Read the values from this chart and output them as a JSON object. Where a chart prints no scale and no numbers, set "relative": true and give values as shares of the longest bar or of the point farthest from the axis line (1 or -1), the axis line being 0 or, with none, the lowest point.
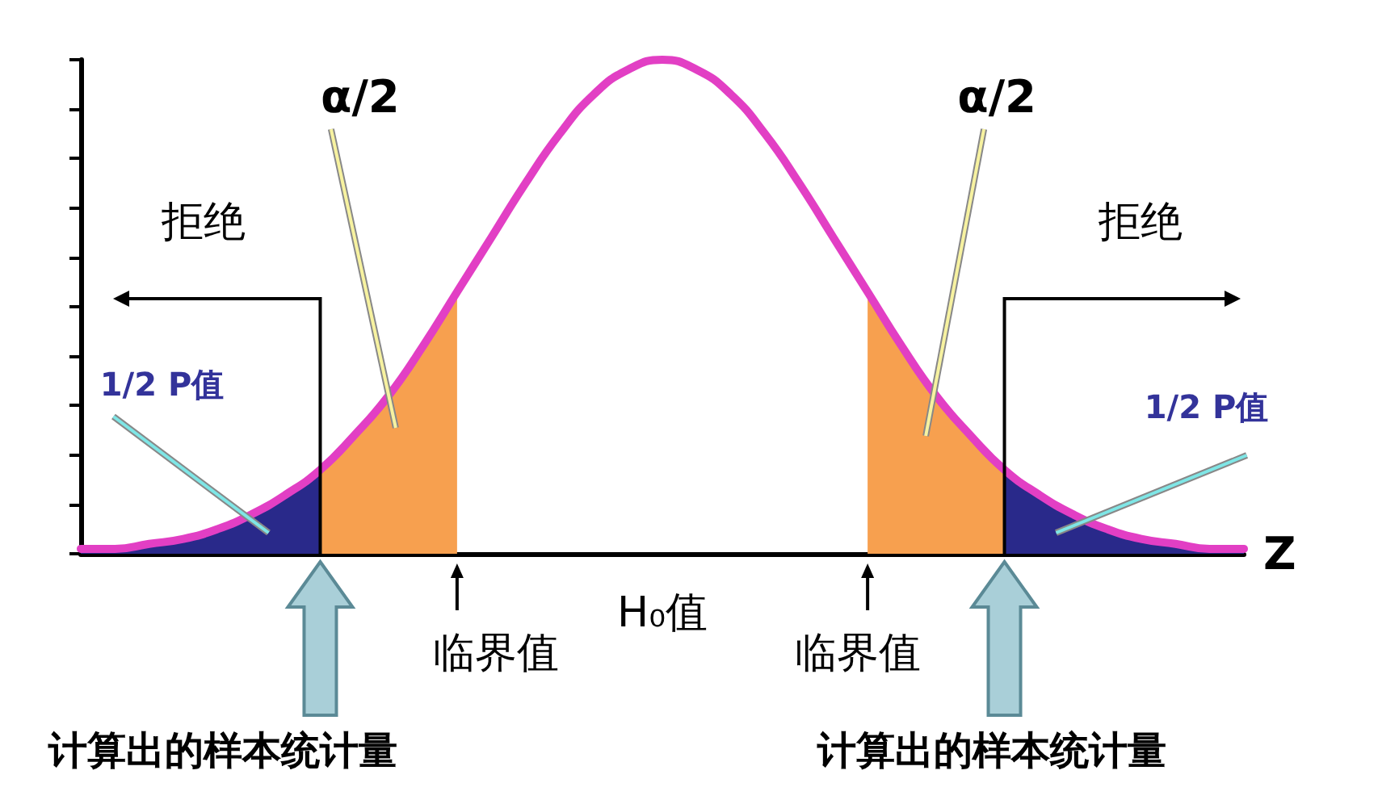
{
  "chart_data": {
    "type": "line",
    "relative": true,
    "xlabel": "Z",
    "categories": [
      null,
      null,
      null,
      null,
      null,
      null,
      null,
      null,
      null,
      null,
      null,
      null,
      null,
      null,
      null,
      null,
      null,
      null,
      null,
      null,
      null,
      null,
      null,
      null,
      null,
      null,
      null,
      null,
      null,
      null,
      null,
      null,
      null,
      null,
      null
    ],
    "series": [
      {
        "type": "area",
        "color": "#29298a",
        "values": [
          0.01,
          0.01,
          0.02,
          0.03,
          0.05,
          0.08,
          0.12,
          0.17,
          null,
          null,
          null,
          null,
          null,
          null,
          null,
          null,
          null,
          null,
          null,
          null,
          null,
          null,
          null,
          null,
          null,
          null,
          null,
          null,
          null,
          null,
          null,
          null,
          null,
          null,
          null
        ]
      },
      {
        "type": "area",
        "color": "#29298a",
        "values": [
          null,
          null,
          null,
          null,
          null,
          null,
          null,
          null,
          null,
          null,
          null,
          null,
          null,
          null,
          null,
          null,
          null,
          null,
          null,
          null,
          null,
          null,
          null,
          null,
          null,
          null,
          null,
          0.17,
          0.12,
          0.08,
          0.05,
          0.03,
          0.02,
          0.01,
          0.01
        ]
      },
      {
        "type": "area",
        "color": "#f7a04f",
        "values": [
          null,
          null,
          null,
          null,
          null,
          null,
          null,
          0.17,
          0.24,
          0.32,
          0.42,
          0.53,
          null,
          null,
          null,
          null,
          null,
          null,
          null,
          null,
          null,
          null,
          null,
          null,
          null,
          null,
          null,
          null,
          null,
          null,
          null,
          null,
          null,
          null,
          null
        ]
      },
      {
        "type": "area",
        "color": "#f7a04f",
        "values": [
          null,
          null,
          null,
          null,
          null,
          null,
          null,
          null,
          null,
          null,
          null,
          null,
          null,
          null,
          null,
          null,
          null,
          null,
          null,
          null,
          null,
          null,
          null,
          0.53,
          0.42,
          0.32,
          0.24,
          0.17,
          null,
          null,
          null,
          null,
          null,
          null,
          null
        ]
      },
      {
        "color": "#e23fc4",
        "values": [
          0.01,
          0.01,
          0.02,
          0.03,
          0.05,
          0.08,
          0.12,
          0.17,
          0.24,
          0.32,
          0.42,
          0.53,
          0.64,
          0.75,
          0.85,
          0.93,
          0.98,
          1,
          0.98,
          0.93,
          0.85,
          0.75,
          0.64,
          0.53,
          0.42,
          0.32,
          0.24,
          0.17,
          0.12,
          0.08,
          0.05,
          0.03,
          0.02,
          0.01,
          0.01
        ]
      }
    ],
    "annotations": [
      "α/2",
      "α/2",
      "拒绝",
      "拒绝",
      "1/2 P值",
      "1/2 P值",
      "临界值",
      "临界值",
      "H₀值",
      "计算出的样本统计量",
      "计算出的样本统计量"
    ]
  }
}
